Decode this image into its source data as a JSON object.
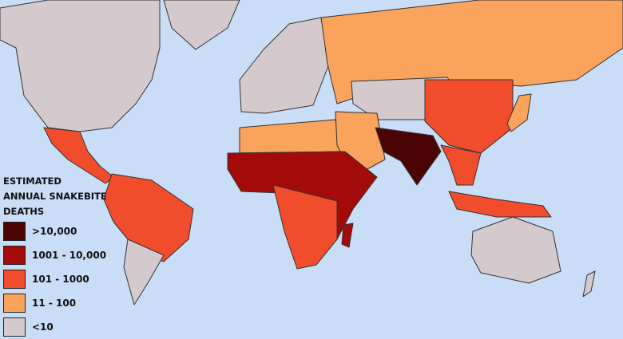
{
  "legend": {
    "title_lines": [
      "ESTIMATED",
      "ANNUAL SNAKEBITE",
      "DEATHS"
    ],
    "items": [
      {
        "label": ">10,000",
        "color": "#4b0404"
      },
      {
        "label": "1001 - 10,000",
        "color": "#a30b0b"
      },
      {
        "label": "101 - 1000",
        "color": "#f14c2b"
      },
      {
        "label": "11 - 100",
        "color": "#f9a35c"
      },
      {
        "label": "<10",
        "color": "#d4cacd"
      }
    ]
  },
  "colors": {
    "ocean": "#c9ddf6"
  }
}
